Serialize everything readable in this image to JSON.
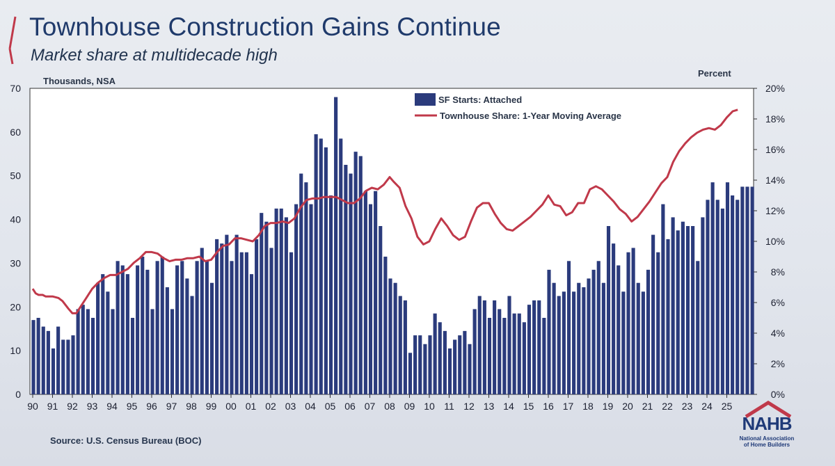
{
  "slide": {
    "title": "Townhouse Construction Gains Continue",
    "subtitle": "Market share at multidecade high",
    "source": "Source: U.S. Census Bureau (BOC)",
    "logo": {
      "name": "NAHB",
      "sub1": "National Association",
      "sub2": "of Home Builders"
    }
  },
  "colors": {
    "bar": "#2b3b7c",
    "line": "#c0394a",
    "title": "#1f3a6b"
  },
  "chart_data": {
    "type": "bar+line",
    "left_axis_label": "Thousands, NSA",
    "right_axis_label": "Percent",
    "y_left": {
      "min": 0,
      "max": 70,
      "ticks": [
        "0",
        "10",
        "20",
        "30",
        "40",
        "50",
        "60",
        "70"
      ]
    },
    "y_right": {
      "min": 0,
      "max": 20,
      "ticks": [
        "0%",
        "2%",
        "4%",
        "6%",
        "8%",
        "10%",
        "12%",
        "14%",
        "16%",
        "18%",
        "20%"
      ]
    },
    "x_ticks": [
      "90",
      "91",
      "92",
      "93",
      "94",
      "95",
      "96",
      "97",
      "98",
      "99",
      "00",
      "01",
      "02",
      "03",
      "04",
      "05",
      "06",
      "07",
      "08",
      "09",
      "10",
      "11",
      "12",
      "13",
      "14",
      "15",
      "16",
      "17",
      "18",
      "19",
      "20",
      "21",
      "22",
      "23",
      "24",
      "25"
    ],
    "legend": [
      "SF Starts: Attached",
      "Townhouse Share: 1-Year Moving Average"
    ],
    "grid": false,
    "bar_series": {
      "name": "SF Starts: Attached",
      "values": [
        17,
        17.5,
        15.5,
        14.5,
        10.5,
        15.5,
        12.5,
        12.5,
        13.5,
        19.5,
        20.5,
        19.5,
        17.5,
        25.5,
        27.5,
        23.5,
        19.5,
        30.5,
        29.5,
        27.5,
        17.5,
        29.5,
        31.5,
        28.5,
        19.5,
        30.5,
        31.5,
        24.5,
        19.5,
        29.5,
        30.5,
        26.5,
        22.5,
        30.5,
        33.5,
        30.5,
        25.5,
        35.5,
        34.5,
        36.5,
        30.5,
        36.5,
        32.5,
        32.5,
        27.5,
        35.5,
        41.5,
        39.5,
        33.5,
        42.5,
        42.5,
        40.5,
        32.5,
        43.5,
        50.5,
        48.5,
        43.5,
        59.5,
        58.5,
        56.5,
        45.5,
        68,
        58.5,
        52.5,
        50.5,
        55.5,
        54.5,
        46.5,
        43.5,
        46.5,
        38.5,
        31.5,
        26.5,
        25.5,
        22.5,
        21.5,
        9.5,
        13.5,
        13.5,
        11.5,
        13.5,
        18.5,
        16.5,
        14.5,
        10.5,
        12.5,
        13.5,
        14.5,
        11.5,
        19.5,
        22.5,
        21.5,
        17.5,
        21.5,
        19.5,
        17.5,
        22.5,
        18.5,
        18.5,
        16.5,
        20.5,
        21.5,
        21.5,
        17.5,
        28.5,
        25.5,
        22.5,
        23.5,
        30.5,
        23.5,
        25.5,
        24.5,
        26.5,
        28.5,
        30.5,
        25.5,
        38.5,
        34.5,
        29.5,
        23.5,
        32.5,
        33.5,
        25.5,
        23.5,
        28.5,
        36.5,
        32.5,
        43.5,
        35.5,
        40.5,
        37.5,
        39.5,
        38.5,
        38.5,
        30.5,
        40.5,
        44.5,
        48.5,
        44.5,
        42.5,
        48.5,
        45.5,
        44.5,
        47.5,
        47.5,
        47.5
      ]
    },
    "line_series": {
      "name": "Townhouse Share: 1-Year Moving Average",
      "x": [
        90.0,
        90.15,
        90.3,
        90.5,
        90.65,
        91.0,
        91.3,
        91.5,
        91.8,
        92.0,
        92.2,
        92.4,
        92.7,
        93.0,
        93.3,
        93.6,
        93.9,
        94.2,
        94.5,
        94.8,
        95.1,
        95.4,
        95.7,
        96.0,
        96.3,
        96.6,
        96.9,
        97.2,
        97.5,
        97.8,
        98.1,
        98.4,
        98.7,
        99.0,
        99.3,
        99.6,
        99.9,
        100.2,
        100.5,
        100.8,
        101.1,
        101.4,
        101.7,
        102.0,
        102.3,
        102.6,
        102.9,
        103.2,
        103.5,
        103.8,
        104.1,
        104.4,
        104.7,
        105.0,
        105.3,
        105.6,
        105.9,
        106.2,
        106.5,
        106.8,
        107.1,
        107.4,
        107.7,
        108.0,
        108.2,
        108.5,
        108.8,
        109.1,
        109.4,
        109.7,
        110.0,
        110.3,
        110.6,
        110.9,
        111.2,
        111.5,
        111.8,
        112.1,
        112.4,
        112.7,
        113.0,
        113.3,
        113.6,
        113.9,
        114.2,
        114.5,
        114.8,
        115.1,
        115.4,
        115.7,
        116.0,
        116.3,
        116.6,
        116.9,
        117.2,
        117.5,
        117.8,
        118.1,
        118.4,
        118.7,
        119.0,
        119.3,
        119.6,
        119.9,
        120.2,
        120.5,
        120.8,
        121.1,
        121.4,
        121.7,
        122.0,
        122.3,
        122.6,
        122.9,
        123.2,
        123.5,
        123.8,
        124.1,
        124.4,
        124.7,
        125.0,
        125.3,
        125.55
      ],
      "y": [
        6.9,
        6.6,
        6.5,
        6.5,
        6.4,
        6.4,
        6.3,
        6.1,
        5.6,
        5.3,
        5.3,
        5.7,
        6.3,
        6.9,
        7.3,
        7.6,
        7.8,
        7.8,
        8.0,
        8.2,
        8.6,
        8.9,
        9.3,
        9.3,
        9.2,
        8.9,
        8.7,
        8.8,
        8.8,
        8.9,
        8.9,
        9.0,
        8.7,
        8.8,
        9.3,
        9.7,
        9.8,
        10.2,
        10.2,
        10.1,
        10.0,
        10.4,
        11.0,
        11.2,
        11.2,
        11.3,
        11.2,
        11.5,
        12.2,
        12.7,
        12.8,
        12.8,
        12.9,
        12.9,
        12.9,
        12.7,
        12.5,
        12.5,
        12.8,
        13.3,
        13.5,
        13.4,
        13.7,
        14.2,
        13.9,
        13.5,
        12.3,
        11.5,
        10.3,
        9.8,
        10.0,
        10.8,
        11.5,
        11.0,
        10.4,
        10.1,
        10.3,
        11.3,
        12.2,
        12.5,
        12.5,
        11.8,
        11.2,
        10.8,
        10.7,
        11.0,
        11.3,
        11.6,
        12.0,
        12.4,
        13.0,
        12.4,
        12.3,
        11.7,
        11.9,
        12.5,
        12.5,
        13.4,
        13.6,
        13.4,
        13.0,
        12.6,
        12.1,
        11.8,
        11.3,
        11.6,
        12.1,
        12.6,
        13.2,
        13.8,
        14.2,
        15.2,
        15.9,
        16.4,
        16.8,
        17.1,
        17.3,
        17.4,
        17.3,
        17.6,
        18.1,
        18.5,
        18.6
      ]
    }
  }
}
